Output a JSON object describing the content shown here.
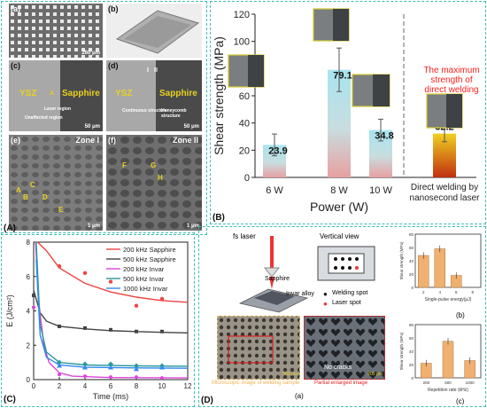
{
  "panel_a": {
    "tag": "(A)",
    "images": [
      {
        "letter": "(a)",
        "scale": "260 μm"
      },
      {
        "letter": "(b)",
        "scale": ""
      },
      {
        "letter": "(c)",
        "scale": "50 μm",
        "left_label": "YSZ",
        "right_label": "Sapphire",
        "notes": [
          "Laser region",
          "Unaffected region"
        ],
        "point": "A"
      },
      {
        "letter": "(d)",
        "scale": "50 μm",
        "left_label": "YSZ",
        "right_label": "Sapphire",
        "notes": [
          "Continuous structure",
          "Honeycomb structure"
        ],
        "zones": [
          "I",
          "II"
        ]
      },
      {
        "letter": "(e)",
        "scale": "1 μm",
        "zone": "Zone I",
        "points": [
          "A",
          "C",
          "B",
          "D",
          "E"
        ]
      },
      {
        "letter": "(f)",
        "scale": "1 μm",
        "zone": "Zone II",
        "points": [
          "F",
          "G",
          "H"
        ]
      }
    ]
  },
  "panel_b": {
    "tag": "(B)",
    "annotation": "The maximum strength of direct welding",
    "bar_colors": {
      "top": "#a8e4ee",
      "bottom": "#e8a0a0",
      "direct_top": "#f0d020",
      "direct_bottom": "#c03010"
    },
    "accent": "#d4c830",
    "annotation_color": "#ff2020"
  },
  "panel_c": {
    "tag": "(C)"
  },
  "panel_d": {
    "tag": "(D)",
    "fs_laser": "fs laser",
    "vertical_view": "Vertical view",
    "sapphire": "Sapphire",
    "invar": "Invar alloy",
    "legend_welding": "Welding spot",
    "legend_laser": "Laser spot",
    "caption_micro": "Microscopic image of welding sample",
    "caption_partial": "Partial enlarged image",
    "no_cracks": "No cracks",
    "scale1": "500 μm",
    "scale2": "200 μm",
    "sub_a": "(a)",
    "sub_b": "(b)",
    "sub_c": "(c)",
    "micro_color": "#f0c070",
    "partial_color": "#e02020"
  },
  "chart_data": [
    {
      "type": "bar",
      "categories": [
        "6 W",
        "8 W",
        "10 W",
        "Direct welding by nanosecond laser"
      ],
      "values": [
        23.9,
        79.1,
        34.8,
        32.2
      ],
      "errors": [
        8,
        16,
        8,
        6
      ],
      "title": "",
      "xlabel": "Power (W)",
      "ylabel": "Shear strength (MPa)",
      "ylim": [
        0,
        120
      ],
      "yticks": [
        0,
        20,
        40,
        60,
        80,
        100,
        120
      ],
      "grid": false
    },
    {
      "type": "line",
      "title": "",
      "xlabel": "Time (ms)",
      "ylabel": "E (J/cm²)",
      "xlim": [
        0,
        12
      ],
      "ylim": [
        0,
        8
      ],
      "xticks": [
        0,
        2,
        4,
        6,
        8,
        10,
        12
      ],
      "yticks": [
        0,
        2,
        4,
        6,
        8
      ],
      "legend_position": "top-right",
      "series": [
        {
          "name": "200 kHz Sapphire",
          "color": "#ee4444",
          "x": [
            2,
            4,
            6,
            8,
            10
          ],
          "y": [
            6.6,
            6.2,
            5.7,
            4.3,
            4.7
          ],
          "fit": [
            [
              0.3,
              8
            ],
            [
              1,
              7.5
            ],
            [
              2,
              6.5
            ],
            [
              4,
              5.6
            ],
            [
              6,
              5.1
            ],
            [
              8,
              4.8
            ],
            [
              10,
              4.6
            ],
            [
              12,
              4.5
            ]
          ]
        },
        {
          "name": "500 kHz Sapphire",
          "color": "#444444",
          "x": [
            0,
            2,
            4,
            6,
            8,
            10
          ],
          "y": [
            4.9,
            3.1,
            3.0,
            2.9,
            2.8,
            2.8
          ],
          "fit": [
            [
              0,
              5.2
            ],
            [
              0.5,
              3.9
            ],
            [
              1,
              3.4
            ],
            [
              2,
              3.1
            ],
            [
              4,
              2.95
            ],
            [
              6,
              2.85
            ],
            [
              8,
              2.8
            ],
            [
              10,
              2.75
            ],
            [
              12,
              2.72
            ]
          ]
        },
        {
          "name": "200 kHz Invar",
          "color": "#dd44dd",
          "x": [
            0,
            2,
            4,
            6,
            8,
            10
          ],
          "y": [
            4.2,
            0.3,
            0.2,
            0.15,
            0.15,
            0.1
          ],
          "fit": [
            [
              0.15,
              8
            ],
            [
              0.4,
              4.5
            ],
            [
              0.8,
              2
            ],
            [
              1.2,
              1.0
            ],
            [
              2,
              0.4
            ],
            [
              3,
              0.2
            ],
            [
              6,
              0.12
            ],
            [
              12,
              0.1
            ]
          ]
        },
        {
          "name": "500 kHz Invar",
          "color": "#2a9a9a",
          "x": [
            2,
            4,
            6,
            8,
            10
          ],
          "y": [
            1.0,
            0.9,
            0.9,
            0.8,
            0.8
          ],
          "fit": [
            [
              0.2,
              8
            ],
            [
              0.5,
              3.2
            ],
            [
              1,
              1.6
            ],
            [
              2,
              1.0
            ],
            [
              4,
              0.85
            ],
            [
              8,
              0.8
            ],
            [
              12,
              0.78
            ]
          ]
        },
        {
          "name": "1000 kHz Invar",
          "color": "#3388ee",
          "x": [
            2,
            4,
            6,
            8,
            10
          ],
          "y": [
            0.8,
            0.7,
            0.7,
            0.6,
            0.7
          ],
          "fit": [
            [
              0.2,
              7
            ],
            [
              0.5,
              2.6
            ],
            [
              1,
              1.3
            ],
            [
              2,
              0.85
            ],
            [
              4,
              0.72
            ],
            [
              8,
              0.68
            ],
            [
              12,
              0.66
            ]
          ]
        }
      ]
    },
    {
      "type": "bar",
      "title": "",
      "xlabel": "Single-pulse energy(μJ)",
      "ylabel": "Shear strength (MPa)",
      "categories": [
        "2",
        "4",
        "6",
        "8"
      ],
      "values": [
        48,
        58,
        18,
        0
      ],
      "ylim": [
        0,
        80
      ],
      "color": "#f0b070"
    },
    {
      "type": "bar",
      "title": "",
      "xlabel": "Repetition rate (kHz)",
      "ylabel": "Shear strength (MPa)",
      "categories": [
        "200",
        "500",
        "1000"
      ],
      "values": [
        22,
        55,
        26
      ],
      "ylim": [
        0,
        80
      ],
      "color": "#f0b070"
    }
  ]
}
